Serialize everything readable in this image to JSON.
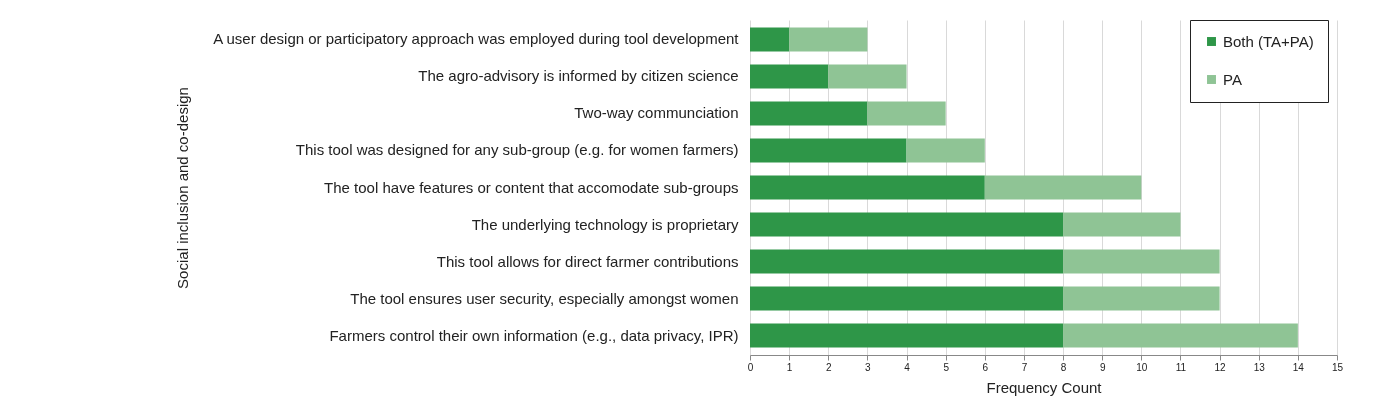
{
  "chart_data": {
    "type": "bar",
    "orientation": "horizontal",
    "stacked": true,
    "categories": [
      "A user design or participatory approach was employed during tool development",
      "The agro-advisory is informed by citizen science",
      "Two-way communciation",
      "This tool was designed for any sub-group (e.g. for women farmers)",
      "The tool have features or content that accomodate sub-groups",
      "The underlying technology is proprietary",
      "This tool allows for direct farmer contributions",
      "The tool ensures user security, especially amongst women",
      "Farmers control their own information (e.g., data privacy, IPR)"
    ],
    "series": [
      {
        "name": "Both (TA+PA)",
        "color": "#2e9648",
        "values": [
          1,
          2,
          3,
          4,
          6,
          8,
          8,
          8,
          8
        ]
      },
      {
        "name": "PA",
        "color": "#8fc495",
        "values": [
          2,
          2,
          2,
          2,
          4,
          3,
          4,
          4,
          6
        ]
      }
    ],
    "xlim": [
      0,
      15
    ],
    "xticks": [
      0,
      1,
      2,
      3,
      4,
      5,
      6,
      7,
      8,
      9,
      10,
      11,
      12,
      13,
      14,
      15
    ],
    "xlabel": "Frequency Count",
    "ylabel": "Social inclusion and co-design",
    "grid": "x",
    "legend": "top right"
  }
}
